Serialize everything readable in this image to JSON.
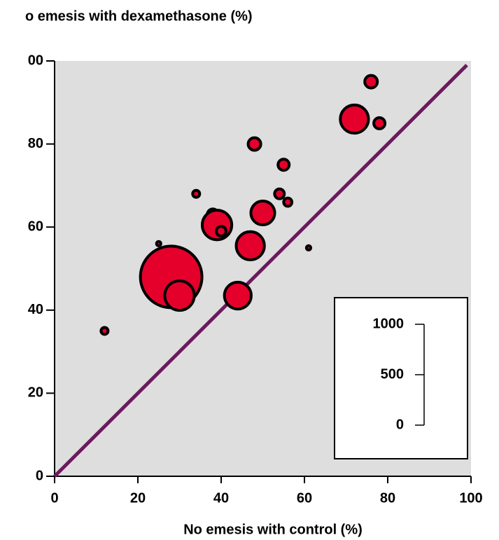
{
  "chart_data": {
    "type": "bubble",
    "title": "o emesis with dexamethasone (%)",
    "x_label": "No emesis with control (%)",
    "xlim": [
      0,
      100
    ],
    "ylim": [
      0,
      100
    ],
    "xticks": [
      0,
      20,
      40,
      60,
      80,
      100
    ],
    "yticks": [
      0,
      20,
      40,
      60,
      80,
      {
        "value": 100,
        "label": "00"
      }
    ],
    "series": [
      {
        "color": "#e4002b",
        "x": [
          12,
          25,
          28,
          30,
          34,
          38,
          39,
          40,
          44,
          47,
          48,
          50,
          54,
          55,
          56,
          61,
          72,
          76,
          78
        ],
        "values": [
          35,
          56,
          48,
          43.5,
          68,
          63,
          60.5,
          59,
          43.5,
          55.5,
          80,
          63.4,
          68,
          75,
          66,
          55,
          86,
          95,
          85
        ],
        "sizes": [
          13,
          5,
          1000,
          230,
          13,
          33,
          230,
          25,
          190,
          210,
          42,
          150,
          25,
          33,
          18,
          5,
          210,
          42,
          33
        ]
      }
    ],
    "diagonal": {
      "x": [
        0,
        99
      ],
      "y": [
        0,
        99
      ],
      "color": "#6b1a5c"
    },
    "size_legend": {
      "ticks": [
        0,
        500,
        1000
      ]
    },
    "plot_background": "#dedede"
  }
}
